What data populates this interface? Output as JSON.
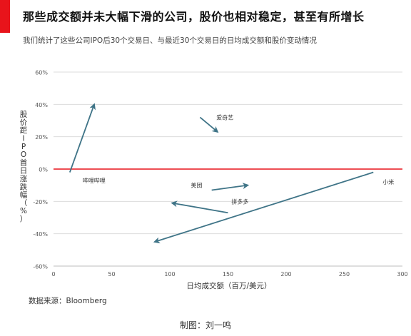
{
  "header": {
    "title": "那些成交额并未大幅下滑的公司，股价也相对稳定，甚至有所增长",
    "subtitle": "我们统计了这些公司IPO后30个交易日、与最近30个交易日的日均成交额和股价变动情况"
  },
  "footer": {
    "source": "数据来源：Bloomberg",
    "credit": "制图：刘一鸣"
  },
  "colors": {
    "accent": "#e8141b",
    "zero_line": "#e8141b",
    "arrow": "#3f7487",
    "grid": "#dcdcdc"
  },
  "chart_data": {
    "type": "scatter",
    "xlabel": "日均成交额（百万/美元）",
    "ylabel": "股价距IPO首日涨跌幅（%）",
    "xlim": [
      0,
      300
    ],
    "ylim": [
      -60,
      60
    ],
    "x_ticks": [
      0,
      50,
      100,
      150,
      200,
      250,
      300
    ],
    "y_ticks": [
      -60,
      -40,
      -20,
      0,
      20,
      40,
      60
    ],
    "y_tick_labels": [
      "-60%",
      "-40%",
      "-20%",
      "0%",
      "20%",
      "40%",
      "60%"
    ],
    "grid": "horizontal",
    "zero_line": true,
    "series": [
      {
        "name": "哔哩哔哩",
        "from": [
          14,
          -2
        ],
        "to": [
          35,
          40
        ],
        "label_at": [
          25,
          -7
        ]
      },
      {
        "name": "爱奇艺",
        "from": [
          126,
          32
        ],
        "to": [
          141,
          23
        ],
        "label_at": [
          140,
          32
        ]
      },
      {
        "name": "美团",
        "from": [
          136,
          -13
        ],
        "to": [
          167,
          -10
        ],
        "label_at": [
          118,
          -10
        ]
      },
      {
        "name": "拼多多",
        "from": [
          150,
          -27
        ],
        "to": [
          102,
          -21
        ],
        "label_at": [
          153,
          -20
        ]
      },
      {
        "name": "小米",
        "from": [
          275,
          -2
        ],
        "to": [
          87,
          -45
        ],
        "label_at": [
          283,
          -8
        ]
      }
    ]
  }
}
